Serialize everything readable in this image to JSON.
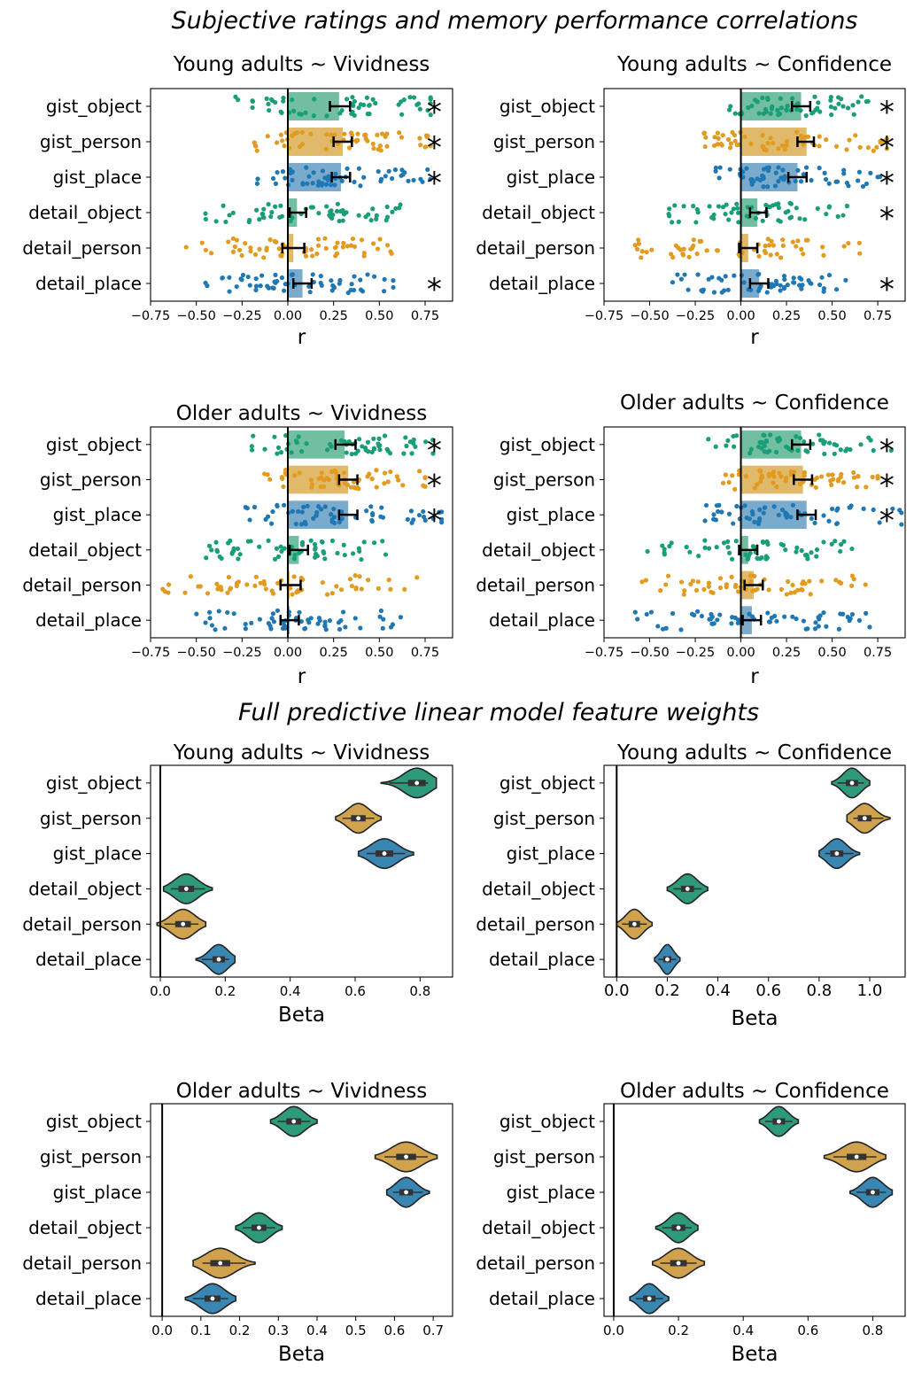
{
  "figure": {
    "section_titles": [
      "Subjective ratings and memory performance correlations",
      "Full predictive linear model feature weights"
    ]
  },
  "colors": {
    "object": "#1a9e77",
    "person": "#e29a1f",
    "place": "#1f77b4",
    "object_bar": "#66b899",
    "person_bar": "#deb35e",
    "place_bar": "#6fa4c8",
    "object_violin": "#2f9a7a",
    "person_violin": "#d0a24e",
    "place_violin": "#3a86b3"
  },
  "chart_data": [
    {
      "type": "bar",
      "title": "Young adults ~ Vividness",
      "xlabel": "r",
      "categories": [
        "gist_object",
        "gist_person",
        "gist_place",
        "detail_object",
        "detail_person",
        "detail_place"
      ],
      "values": [
        0.28,
        0.3,
        0.29,
        0.05,
        0.03,
        0.08
      ],
      "ci": [
        [
          0.23,
          0.34
        ],
        [
          0.25,
          0.35
        ],
        [
          0.24,
          0.34
        ],
        [
          0.01,
          0.1
        ],
        [
          -0.03,
          0.09
        ],
        [
          0.03,
          0.13
        ]
      ],
      "significant": [
        true,
        true,
        true,
        false,
        false,
        true
      ],
      "xlim": [
        -0.75,
        0.9
      ],
      "xticks": [
        -0.75,
        -0.5,
        -0.25,
        0.0,
        0.25,
        0.5,
        0.75
      ],
      "xtick_labels": [
        "−0.75",
        "−0.50",
        "−0.25",
        "0.00",
        "0.25",
        "0.50",
        "0.75"
      ],
      "scatter_range": [
        [
          -0.5,
          0.78
        ],
        [
          -0.4,
          0.78
        ],
        [
          -0.3,
          0.8
        ],
        [
          -0.45,
          0.85
        ],
        [
          -0.65,
          0.72
        ],
        [
          -0.5,
          0.72
        ]
      ],
      "annotations": [
        "*",
        "*",
        "*",
        "",
        "",
        "*"
      ]
    },
    {
      "type": "bar",
      "title": "Young adults ~ Confidence",
      "xlabel": "r",
      "categories": [
        "gist_object",
        "gist_person",
        "gist_place",
        "detail_object",
        "detail_person",
        "detail_place"
      ],
      "values": [
        0.33,
        0.36,
        0.31,
        0.09,
        0.04,
        0.1
      ],
      "ci": [
        [
          0.28,
          0.38
        ],
        [
          0.31,
          0.4
        ],
        [
          0.26,
          0.36
        ],
        [
          0.05,
          0.14
        ],
        [
          -0.01,
          0.09
        ],
        [
          0.05,
          0.15
        ]
      ],
      "significant": [
        true,
        true,
        true,
        true,
        false,
        true
      ],
      "xlim": [
        -0.75,
        0.9
      ],
      "xticks": [
        -0.75,
        -0.5,
        -0.25,
        0.0,
        0.25,
        0.5,
        0.75
      ],
      "xtick_labels": [
        "−0.75",
        "−0.50",
        "−0.25",
        "0.00",
        "0.25",
        "0.50",
        "0.75"
      ],
      "scatter_range": [
        [
          -0.1,
          0.8
        ],
        [
          -0.5,
          0.8
        ],
        [
          -0.25,
          0.8
        ],
        [
          -0.5,
          0.62
        ],
        [
          -0.7,
          0.7
        ],
        [
          -0.4,
          0.7
        ]
      ],
      "annotations": [
        "*",
        "*",
        "*",
        "*",
        "",
        "*"
      ]
    },
    {
      "type": "bar",
      "title": "Older adults ~ Vividness",
      "xlabel": "r",
      "categories": [
        "gist_object",
        "gist_person",
        "gist_place",
        "detail_object",
        "detail_person",
        "detail_place"
      ],
      "values": [
        0.31,
        0.33,
        0.33,
        0.06,
        0.01,
        0.01
      ],
      "ci": [
        [
          0.26,
          0.37
        ],
        [
          0.28,
          0.38
        ],
        [
          0.28,
          0.38
        ],
        [
          0.01,
          0.11
        ],
        [
          -0.04,
          0.07
        ],
        [
          -0.04,
          0.06
        ]
      ],
      "significant": [
        true,
        true,
        true,
        false,
        false,
        false
      ],
      "xlim": [
        -0.75,
        0.9
      ],
      "xticks": [
        -0.75,
        -0.5,
        -0.25,
        0.0,
        0.25,
        0.5,
        0.75
      ],
      "xtick_labels": [
        "−0.75",
        "−0.50",
        "−0.25",
        "0.00",
        "0.25",
        "0.50",
        "0.75"
      ],
      "scatter_range": [
        [
          -0.33,
          0.8
        ],
        [
          -0.3,
          0.75
        ],
        [
          -0.42,
          0.84
        ],
        [
          -0.55,
          0.58
        ],
        [
          -0.75,
          0.85
        ],
        [
          -0.5,
          0.88
        ]
      ],
      "annotations": [
        "*",
        "*",
        "*",
        "",
        "",
        ""
      ]
    },
    {
      "type": "bar",
      "title": "Older adults ~ Confidence",
      "xlabel": "r",
      "categories": [
        "gist_object",
        "gist_person",
        "gist_place",
        "detail_object",
        "detail_person",
        "detail_place"
      ],
      "values": [
        0.33,
        0.34,
        0.36,
        0.04,
        0.07,
        0.06
      ],
      "ci": [
        [
          0.28,
          0.38
        ],
        [
          0.29,
          0.39
        ],
        [
          0.31,
          0.41
        ],
        [
          -0.01,
          0.09
        ],
        [
          0.02,
          0.12
        ],
        [
          0.01,
          0.11
        ]
      ],
      "significant": [
        true,
        true,
        true,
        false,
        false,
        false
      ],
      "xlim": [
        -0.75,
        0.9
      ],
      "xticks": [
        -0.75,
        -0.5,
        -0.25,
        0.0,
        0.25,
        0.5,
        0.75
      ],
      "xtick_labels": [
        "−0.75",
        "−0.50",
        "−0.25",
        "0.00",
        "0.25",
        "0.50",
        "0.75"
      ],
      "scatter_range": [
        [
          -0.35,
          0.83
        ],
        [
          -0.3,
          0.75
        ],
        [
          -0.5,
          0.88
        ],
        [
          -0.62,
          0.65
        ],
        [
          -0.65,
          0.75
        ],
        [
          -0.65,
          0.88
        ]
      ],
      "annotations": [
        "*",
        "*",
        "*",
        "",
        "",
        ""
      ]
    },
    {
      "type": "violin",
      "title": "Young adults ~ Vividness",
      "xlabel": "Beta",
      "categories": [
        "gist_object",
        "gist_person",
        "gist_place",
        "detail_object",
        "detail_person",
        "detail_place"
      ],
      "medians": [
        0.79,
        0.61,
        0.69,
        0.08,
        0.07,
        0.18
      ],
      "ranges": [
        [
          0.68,
          0.85
        ],
        [
          0.54,
          0.68
        ],
        [
          0.61,
          0.78
        ],
        [
          0.01,
          0.16
        ],
        [
          -0.01,
          0.14
        ],
        [
          0.11,
          0.23
        ]
      ],
      "xlim": [
        -0.03,
        0.9
      ],
      "xticks": [
        0.0,
        0.2,
        0.4,
        0.6,
        0.8
      ],
      "xtick_labels": [
        "0.0",
        "0.2",
        "0.4",
        "0.6",
        "0.8"
      ]
    },
    {
      "type": "violin",
      "title": "Young adults ~ Confidence",
      "xlabel": "Beta",
      "categories": [
        "gist_object",
        "gist_person",
        "gist_place",
        "detail_object",
        "detail_person",
        "detail_place"
      ],
      "medians": [
        0.93,
        0.98,
        0.87,
        0.28,
        0.07,
        0.2
      ],
      "ranges": [
        [
          0.85,
          1.0
        ],
        [
          0.91,
          1.08
        ],
        [
          0.8,
          0.96
        ],
        [
          0.2,
          0.36
        ],
        [
          0.0,
          0.14
        ],
        [
          0.15,
          0.25
        ]
      ],
      "xlim": [
        -0.05,
        1.14
      ],
      "xticks": [
        0.0,
        0.2,
        0.4,
        0.6,
        0.8,
        1.0
      ],
      "xtick_labels": [
        "0.0",
        "0.2",
        "0.4",
        "0.6",
        "0.8",
        "1.0"
      ]
    },
    {
      "type": "violin",
      "title": "Older adults ~ Vividness",
      "xlabel": "Beta",
      "categories": [
        "gist_object",
        "gist_person",
        "gist_place",
        "detail_object",
        "detail_person",
        "detail_place"
      ],
      "medians": [
        0.34,
        0.63,
        0.63,
        0.25,
        0.15,
        0.13
      ],
      "ranges": [
        [
          0.28,
          0.4
        ],
        [
          0.55,
          0.71
        ],
        [
          0.58,
          0.69
        ],
        [
          0.19,
          0.31
        ],
        [
          0.08,
          0.24
        ],
        [
          0.06,
          0.19
        ]
      ],
      "xlim": [
        -0.03,
        0.75
      ],
      "xticks": [
        0.0,
        0.1,
        0.2,
        0.3,
        0.4,
        0.5,
        0.6,
        0.7
      ],
      "xtick_labels": [
        "0.0",
        "0.1",
        "0.2",
        "0.3",
        "0.4",
        "0.5",
        "0.6",
        "0.7"
      ]
    },
    {
      "type": "violin",
      "title": "Older adults ~ Confidence",
      "xlabel": "Beta",
      "categories": [
        "gist_object",
        "gist_person",
        "gist_place",
        "detail_object",
        "detail_person",
        "detail_place"
      ],
      "medians": [
        0.51,
        0.75,
        0.8,
        0.2,
        0.2,
        0.11
      ],
      "ranges": [
        [
          0.45,
          0.57
        ],
        [
          0.65,
          0.84
        ],
        [
          0.73,
          0.86
        ],
        [
          0.13,
          0.26
        ],
        [
          0.12,
          0.28
        ],
        [
          0.05,
          0.17
        ]
      ],
      "xlim": [
        -0.03,
        0.9
      ],
      "xticks": [
        0.0,
        0.2,
        0.4,
        0.6,
        0.8
      ],
      "xtick_labels": [
        "0.0",
        "0.2",
        "0.4",
        "0.6",
        "0.8"
      ]
    }
  ]
}
